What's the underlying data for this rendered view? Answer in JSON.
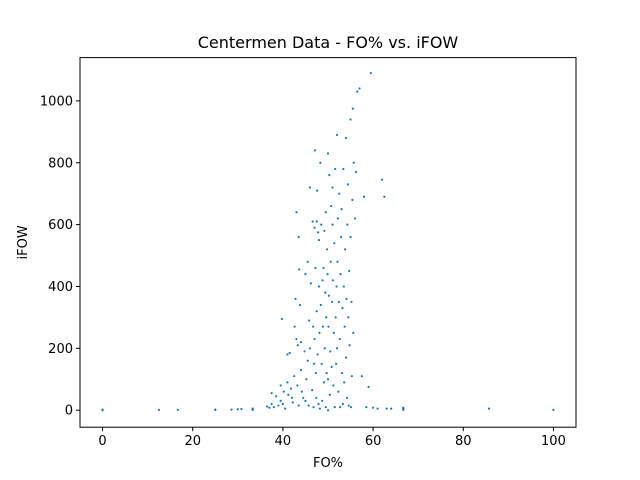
{
  "chart_data": {
    "type": "scatter",
    "title": "Centermen Data - FO% vs. iFOW",
    "xlabel": "FO%",
    "ylabel": "iFOW",
    "xlim": [
      -5,
      105
    ],
    "ylim": [
      -55,
      1140
    ],
    "xticks": [
      0,
      20,
      40,
      60,
      80,
      100
    ],
    "yticks": [
      0,
      200,
      400,
      600,
      800,
      1000
    ],
    "grid": false,
    "marker_color": "#1f77b4",
    "series": [
      {
        "points": [
          [
            0,
            0
          ],
          [
            0,
            2
          ],
          [
            0,
            1
          ],
          [
            12.5,
            1
          ],
          [
            16.7,
            1
          ],
          [
            25,
            1
          ],
          [
            25,
            2
          ],
          [
            28.6,
            2
          ],
          [
            30,
            3
          ],
          [
            30.8,
            4
          ],
          [
            33.3,
            2
          ],
          [
            33.3,
            5
          ],
          [
            33.3,
            1
          ],
          [
            36.5,
            12
          ],
          [
            37,
            8
          ],
          [
            37.5,
            20
          ],
          [
            37.5,
            55
          ],
          [
            38,
            10
          ],
          [
            38.5,
            45
          ],
          [
            39,
            15
          ],
          [
            39.5,
            30
          ],
          [
            39.5,
            80
          ],
          [
            39.8,
            295
          ],
          [
            40,
            20
          ],
          [
            40.2,
            60
          ],
          [
            40.5,
            5
          ],
          [
            41,
            180
          ],
          [
            41,
            90
          ],
          [
            41.2,
            50
          ],
          [
            41.5,
            185
          ],
          [
            41.8,
            70
          ],
          [
            42,
            40
          ],
          [
            42.2,
            25
          ],
          [
            42.5,
            110
          ],
          [
            42.6,
            270
          ],
          [
            42.8,
            360
          ],
          [
            43,
            640
          ],
          [
            43,
            230
          ],
          [
            43.2,
            80
          ],
          [
            43.3,
            210
          ],
          [
            43.5,
            560
          ],
          [
            43.5,
            15
          ],
          [
            43.6,
            455
          ],
          [
            43.8,
            340
          ],
          [
            44,
            130
          ],
          [
            44,
            220
          ],
          [
            44.2,
            60
          ],
          [
            44.5,
            40
          ],
          [
            44.8,
            190
          ],
          [
            45,
            440
          ],
          [
            45,
            30
          ],
          [
            45.2,
            100
          ],
          [
            45.5,
            480
          ],
          [
            45.5,
            160
          ],
          [
            45.7,
            15
          ],
          [
            45.8,
            290
          ],
          [
            46,
            720
          ],
          [
            46,
            200
          ],
          [
            46.2,
            410
          ],
          [
            46.5,
            65
          ],
          [
            46.6,
            610
          ],
          [
            46.7,
            270
          ],
          [
            46.8,
            10
          ],
          [
            46.9,
            150
          ],
          [
            47,
            590
          ],
          [
            47,
            230
          ],
          [
            47.1,
            840
          ],
          [
            47.2,
            460
          ],
          [
            47.3,
            120
          ],
          [
            47.4,
            40
          ],
          [
            47.5,
            610
          ],
          [
            47.5,
            320
          ],
          [
            47.6,
            710
          ],
          [
            47.7,
            180
          ],
          [
            47.8,
            575
          ],
          [
            47.9,
            20
          ],
          [
            48,
            550
          ],
          [
            48,
            400
          ],
          [
            48.1,
            250
          ],
          [
            48.2,
            5
          ],
          [
            48.3,
            800
          ],
          [
            48.4,
            340
          ],
          [
            48.5,
            600
          ],
          [
            48.6,
            150
          ],
          [
            48.7,
            30
          ],
          [
            48.8,
            420
          ],
          [
            48.9,
            270
          ],
          [
            49,
            460
          ],
          [
            49.1,
            90
          ],
          [
            49.2,
            580
          ],
          [
            49.3,
            200
          ],
          [
            49.4,
            380
          ],
          [
            49.5,
            10
          ],
          [
            49.5,
            640
          ],
          [
            49.6,
            300
          ],
          [
            49.7,
            120
          ],
          [
            49.8,
            520
          ],
          [
            49.9,
            440
          ],
          [
            50,
            0
          ],
          [
            50,
            830
          ],
          [
            50,
            100
          ],
          [
            50.1,
            270
          ],
          [
            50.2,
            370
          ],
          [
            50.3,
            760
          ],
          [
            50.4,
            50
          ],
          [
            50.5,
            190
          ],
          [
            50.6,
            480
          ],
          [
            50.7,
            660
          ],
          [
            50.8,
            140
          ],
          [
            50.9,
            350
          ],
          [
            51,
            720
          ],
          [
            51,
            600
          ],
          [
            51.1,
            420
          ],
          [
            51.2,
            80
          ],
          [
            51.3,
            250
          ],
          [
            51.4,
            540
          ],
          [
            51.5,
            10
          ],
          [
            51.6,
            780
          ],
          [
            51.7,
            300
          ],
          [
            51.8,
            150
          ],
          [
            51.9,
            400
          ],
          [
            52,
            890
          ],
          [
            52,
            200
          ],
          [
            52.1,
            480
          ],
          [
            52.2,
            620
          ],
          [
            52.3,
            60
          ],
          [
            52.4,
            350
          ],
          [
            52.5,
            700
          ],
          [
            52.6,
            230
          ],
          [
            52.7,
            10
          ],
          [
            52.8,
            440
          ],
          [
            52.9,
            560
          ],
          [
            53,
            650
          ],
          [
            53.1,
            120
          ],
          [
            53.2,
            330
          ],
          [
            53.3,
            20
          ],
          [
            53.4,
            780
          ],
          [
            53.5,
            400
          ],
          [
            53.6,
            90
          ],
          [
            53.7,
            270
          ],
          [
            53.8,
            520
          ],
          [
            54,
            880
          ],
          [
            54,
            170
          ],
          [
            54.1,
            360
          ],
          [
            54.2,
            40
          ],
          [
            54.3,
            600
          ],
          [
            54.4,
            730
          ],
          [
            54.5,
            300
          ],
          [
            54.6,
            15
          ],
          [
            54.7,
            450
          ],
          [
            54.8,
            210
          ],
          [
            55,
            940
          ],
          [
            55,
            560
          ],
          [
            55.1,
            10
          ],
          [
            55.2,
            350
          ],
          [
            55.3,
            110
          ],
          [
            55.4,
            680
          ],
          [
            55.5,
            975
          ],
          [
            55.6,
            250
          ],
          [
            55.7,
            800
          ],
          [
            56,
            620
          ],
          [
            56.2,
            770
          ],
          [
            56.5,
            1030
          ],
          [
            57,
            1040
          ],
          [
            57.5,
            110
          ],
          [
            58,
            690
          ],
          [
            58.5,
            10
          ],
          [
            59,
            75
          ],
          [
            59.5,
            1090
          ],
          [
            60,
            8
          ],
          [
            61,
            5
          ],
          [
            62,
            745
          ],
          [
            62.5,
            690
          ],
          [
            63,
            5
          ],
          [
            64,
            5
          ],
          [
            66.7,
            1
          ],
          [
            66.7,
            5
          ],
          [
            66.7,
            8
          ],
          [
            85.7,
            5
          ],
          [
            100,
            1
          ]
        ]
      }
    ]
  }
}
